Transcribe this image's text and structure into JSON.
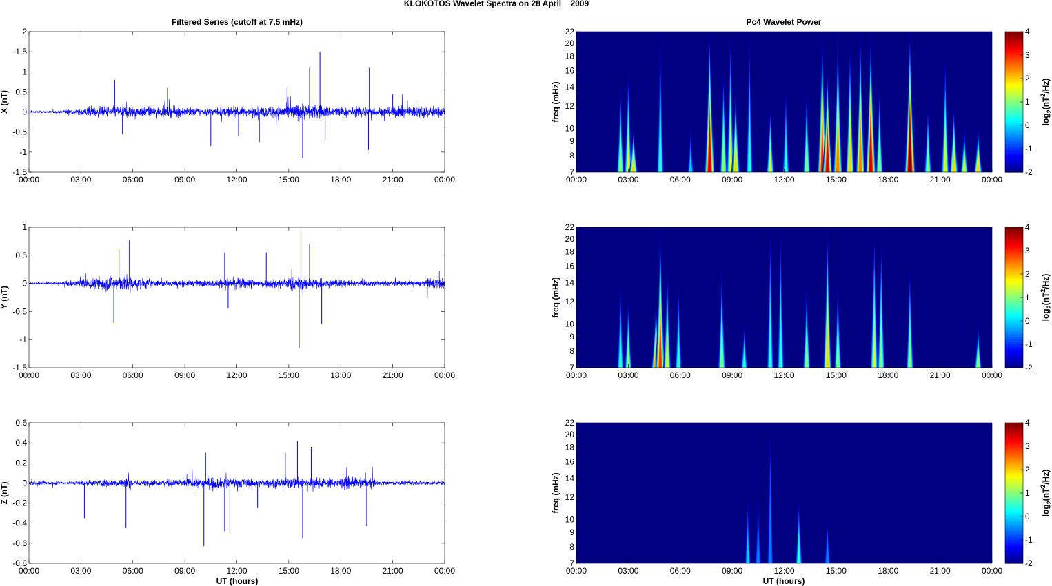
{
  "title": "KLOKOTOS Wavelet Spectra on 28 April    2009",
  "chart_data": [
    {
      "type": "line",
      "title": "Filtered Series (cutoff at 7.5 mHz)",
      "ylabel": "X (nT)",
      "xlabel": "",
      "xlim": [
        0,
        24
      ],
      "ylim": [
        -1.5,
        2
      ],
      "ystep": 0.5,
      "xticks": [
        "00:00",
        "03:00",
        "06:00",
        "09:00",
        "12:00",
        "15:00",
        "18:00",
        "21:00",
        "00:00"
      ],
      "color": "#0000ff",
      "noise_level_per_hour": [
        0.03,
        0.03,
        0.07,
        0.12,
        0.14,
        0.16,
        0.14,
        0.12,
        0.14,
        0.12,
        0.1,
        0.12,
        0.12,
        0.14,
        0.18,
        0.22,
        0.2,
        0.14,
        0.12,
        0.14,
        0.12,
        0.14,
        0.15,
        0.14
      ],
      "spikes": [
        [
          4.95,
          0.8
        ],
        [
          5.4,
          -0.55
        ],
        [
          8.0,
          0.6
        ],
        [
          10.5,
          -0.85
        ],
        [
          12.1,
          -0.6
        ],
        [
          13.3,
          -0.75
        ],
        [
          15.8,
          -1.15
        ],
        [
          16.2,
          1.1
        ],
        [
          16.8,
          1.5
        ],
        [
          17.1,
          -0.7
        ],
        [
          19.6,
          -0.95
        ],
        [
          19.65,
          1.1
        ],
        [
          14.9,
          0.6
        ],
        [
          21.0,
          0.45
        ]
      ]
    },
    {
      "type": "line",
      "title": "",
      "ylabel": "Y (nT)",
      "xlabel": "",
      "xlim": [
        0,
        24
      ],
      "ylim": [
        -1.5,
        1
      ],
      "ystep": 0.5,
      "xticks": [
        "00:00",
        "03:00",
        "06:00",
        "09:00",
        "12:00",
        "15:00",
        "18:00",
        "21:00",
        "00:00"
      ],
      "color": "#0000ff",
      "noise_level_per_hour": [
        0.02,
        0.02,
        0.06,
        0.1,
        0.14,
        0.16,
        0.1,
        0.06,
        0.06,
        0.06,
        0.06,
        0.1,
        0.1,
        0.08,
        0.1,
        0.12,
        0.1,
        0.08,
        0.06,
        0.06,
        0.05,
        0.05,
        0.06,
        0.1
      ],
      "spikes": [
        [
          4.9,
          -0.7
        ],
        [
          5.8,
          0.77
        ],
        [
          11.3,
          0.55
        ],
        [
          11.5,
          -0.45
        ],
        [
          13.7,
          0.55
        ],
        [
          15.6,
          -1.15
        ],
        [
          15.7,
          0.93
        ],
        [
          16.2,
          0.7
        ],
        [
          16.9,
          -0.72
        ],
        [
          5.2,
          0.6
        ]
      ]
    },
    {
      "type": "line",
      "title": "",
      "ylabel": "Z (nT)",
      "xlabel": "UT (hours)",
      "xlim": [
        0,
        24
      ],
      "ylim": [
        -0.8,
        0.6
      ],
      "ystep": 0.2,
      "xticks": [
        "00:00",
        "03:00",
        "06:00",
        "09:00",
        "12:00",
        "15:00",
        "18:00",
        "21:00",
        "00:00"
      ],
      "color": "#0000ff",
      "noise_level_per_hour": [
        0.02,
        0.02,
        0.02,
        0.03,
        0.04,
        0.05,
        0.03,
        0.03,
        0.04,
        0.05,
        0.06,
        0.05,
        0.05,
        0.04,
        0.05,
        0.06,
        0.05,
        0.05,
        0.06,
        0.05,
        0.02,
        0.02,
        0.02,
        0.02
      ],
      "spikes": [
        [
          3.2,
          -0.35
        ],
        [
          5.6,
          -0.45
        ],
        [
          10.1,
          -0.63
        ],
        [
          10.2,
          0.3
        ],
        [
          11.3,
          -0.48
        ],
        [
          11.6,
          -0.48
        ],
        [
          13.2,
          -0.25
        ],
        [
          15.5,
          0.42
        ],
        [
          15.8,
          -0.55
        ],
        [
          16.3,
          0.36
        ],
        [
          19.5,
          -0.43
        ],
        [
          14.8,
          0.3
        ]
      ]
    },
    {
      "type": "heatmap",
      "title": "Pc4 Wavelet Power",
      "ylabel": "freq (mHz)",
      "xlabel": "",
      "xlim": [
        0,
        24
      ],
      "ylim": [
        7,
        22
      ],
      "yscale": "log",
      "yticks": [
        7,
        8,
        9,
        10,
        12,
        14,
        16,
        18,
        20,
        22
      ],
      "xticks": [
        "00:00",
        "03:00",
        "06:00",
        "09:00",
        "12:00",
        "15:00",
        "18:00",
        "21:00",
        "00:00"
      ],
      "colorbar": {
        "min": -2,
        "max": 4,
        "ticks": [
          4,
          3,
          2,
          1,
          0,
          -1,
          -2
        ]
      },
      "bursts_hour_topfreq_power": [
        [
          2.55,
          14,
          1
        ],
        [
          3.0,
          16,
          1.5
        ],
        [
          3.3,
          10,
          2
        ],
        [
          4.85,
          22,
          0.5
        ],
        [
          6.6,
          10,
          0
        ],
        [
          7.7,
          22,
          3.5
        ],
        [
          8.5,
          16,
          1
        ],
        [
          8.9,
          22,
          1.5
        ],
        [
          9.2,
          14,
          2
        ],
        [
          10.0,
          22,
          0.5
        ],
        [
          11.2,
          12,
          1.5
        ],
        [
          12.1,
          14,
          0.5
        ],
        [
          13.3,
          14,
          1
        ],
        [
          14.2,
          22,
          3
        ],
        [
          14.5,
          16,
          3.5
        ],
        [
          15.1,
          22,
          2.5
        ],
        [
          15.8,
          20,
          2
        ],
        [
          16.4,
          22,
          2.5
        ],
        [
          17.0,
          22,
          3.5
        ],
        [
          17.5,
          14,
          1
        ],
        [
          19.26,
          22,
          4
        ],
        [
          20.3,
          12,
          1
        ],
        [
          21.3,
          18,
          1.5
        ],
        [
          21.8,
          12,
          2
        ],
        [
          22.4,
          10,
          1.5
        ],
        [
          23.2,
          10,
          2
        ]
      ]
    },
    {
      "type": "heatmap",
      "title": "",
      "ylabel": "freq (mHz)",
      "xlabel": "",
      "xlim": [
        0,
        24
      ],
      "ylim": [
        7,
        22
      ],
      "yscale": "log",
      "yticks": [
        7,
        8,
        9,
        10,
        12,
        14,
        16,
        18,
        20,
        22
      ],
      "xticks": [
        "00:00",
        "03:00",
        "06:00",
        "09:00",
        "12:00",
        "15:00",
        "18:00",
        "21:00",
        "00:00"
      ],
      "colorbar": {
        "min": -2,
        "max": 4,
        "ticks": [
          4,
          3,
          2,
          1,
          0,
          -1,
          -2
        ]
      },
      "bursts_hour_topfreq_power": [
        [
          2.55,
          14,
          0.5
        ],
        [
          3.0,
          12,
          1
        ],
        [
          4.6,
          12,
          2.5
        ],
        [
          4.85,
          22,
          3
        ],
        [
          5.25,
          16,
          1.5
        ],
        [
          5.9,
          14,
          0.5
        ],
        [
          8.4,
          16,
          1
        ],
        [
          9.7,
          10,
          0.5
        ],
        [
          11.2,
          22,
          0.5
        ],
        [
          11.8,
          22,
          0.5
        ],
        [
          13.3,
          14,
          1
        ],
        [
          14.5,
          22,
          2
        ],
        [
          15.1,
          14,
          1
        ],
        [
          17.2,
          22,
          1.5
        ],
        [
          17.6,
          20,
          1
        ],
        [
          19.26,
          16,
          1
        ],
        [
          23.2,
          10,
          1
        ]
      ]
    },
    {
      "type": "heatmap",
      "title": "",
      "ylabel": "freq (mHz)",
      "xlabel": "UT (hours)",
      "xlim": [
        0,
        24
      ],
      "ylim": [
        7,
        22
      ],
      "yscale": "log",
      "yticks": [
        7,
        8,
        9,
        10,
        12,
        14,
        16,
        18,
        20,
        22
      ],
      "xticks": [
        "00:00",
        "03:00",
        "06:00",
        "09:00",
        "12:00",
        "15:00",
        "18:00",
        "21:00",
        "00:00"
      ],
      "colorbar": {
        "min": -2,
        "max": 4,
        "ticks": [
          4,
          3,
          2,
          1,
          0,
          -1,
          -2
        ]
      },
      "bursts_hour_topfreq_power": [
        [
          9.9,
          12,
          0
        ],
        [
          10.5,
          12,
          -0.5
        ],
        [
          11.2,
          22,
          -0.5
        ],
        [
          12.85,
          12,
          0.5
        ],
        [
          14.5,
          10,
          -0.5
        ]
      ]
    }
  ],
  "colorbar_label": {
    "a": "log",
    "b": "2",
    "c": "(nT",
    "d": "2",
    "e": "/Hz)"
  }
}
